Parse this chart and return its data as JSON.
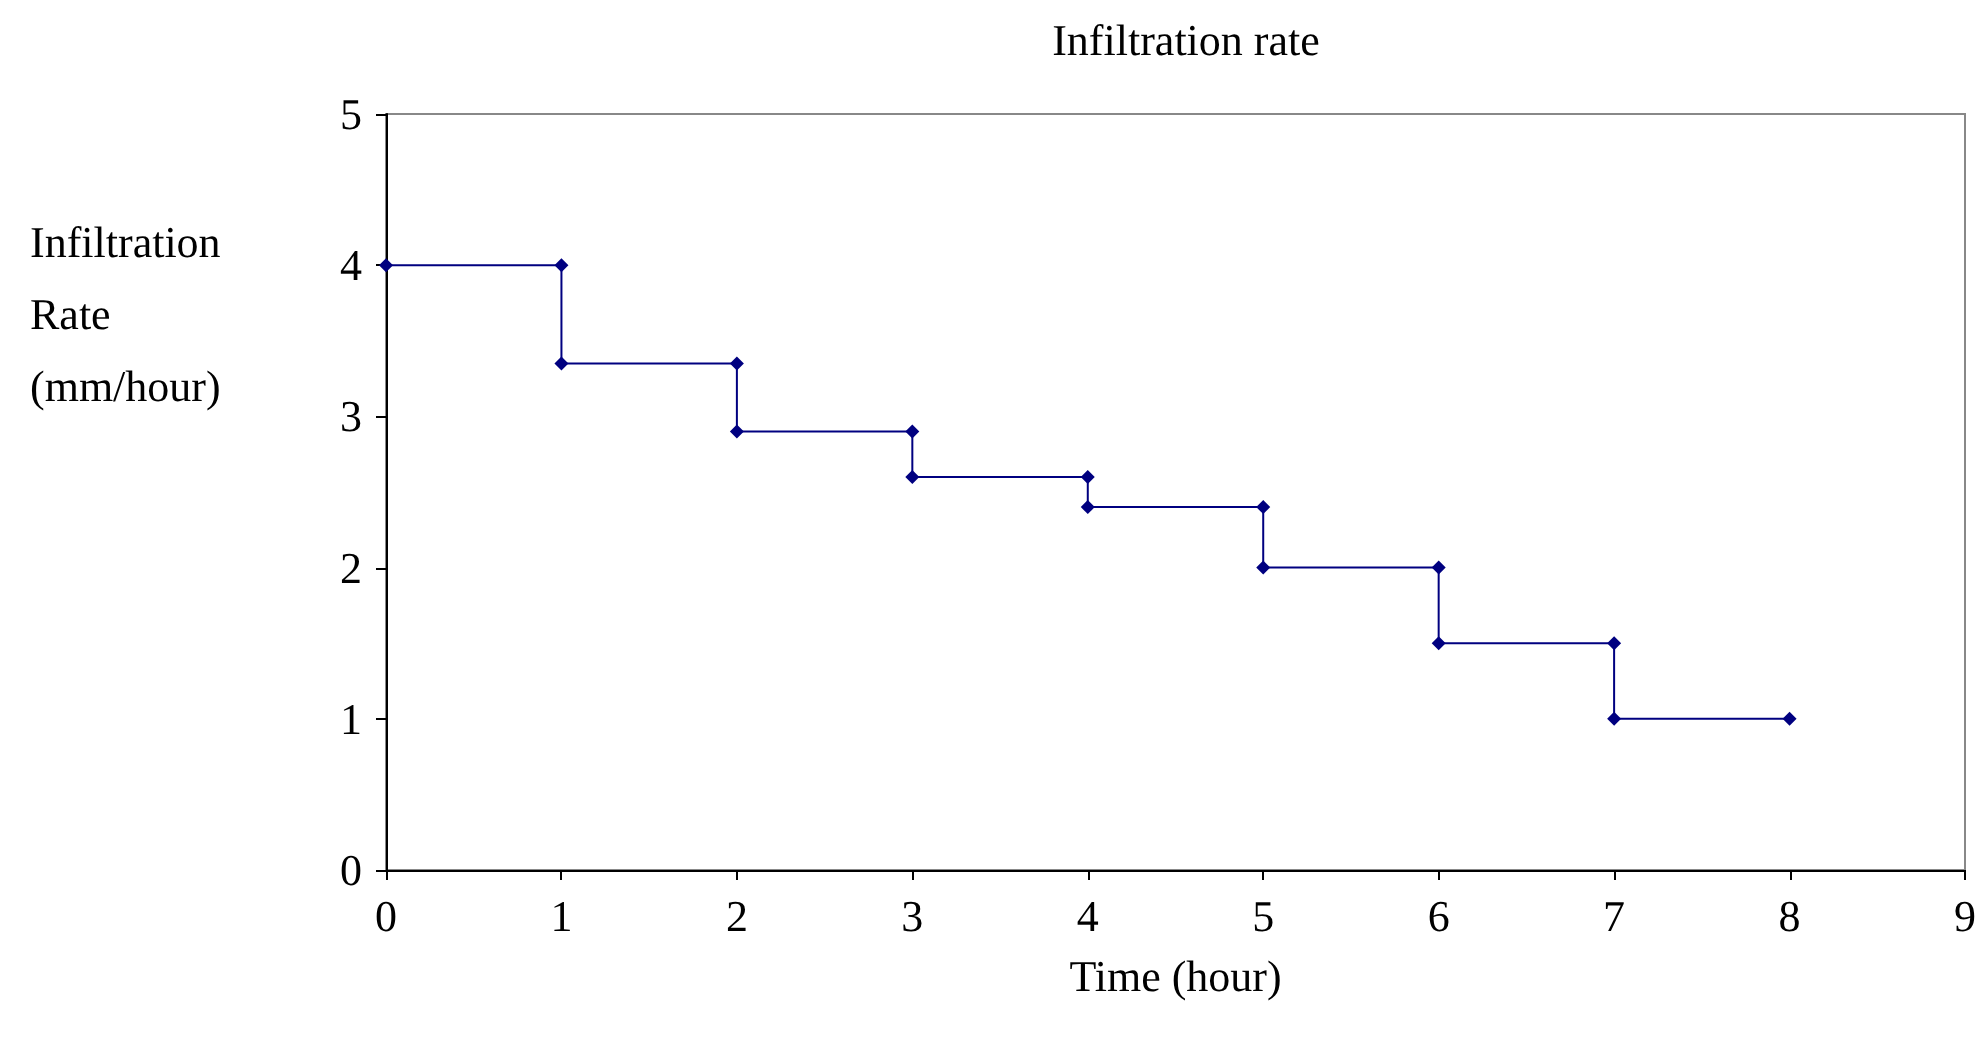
{
  "chart_data": {
    "type": "line",
    "title": "Infiltration rate",
    "xlabel": "Time (hour)",
    "ylabel": "Infiltration\nRate\n(mm/hour)",
    "x": [
      0,
      1,
      1,
      2,
      2,
      3,
      3,
      4,
      4,
      5,
      5,
      6,
      6,
      7,
      7,
      8
    ],
    "series": [
      {
        "color": "#000080",
        "values": [
          4,
          4,
          3.35,
          3.35,
          2.9,
          2.9,
          2.6,
          2.6,
          2.4,
          2.4,
          2.0,
          2.0,
          1.5,
          1.5,
          1.0,
          1.0
        ]
      }
    ],
    "xlim": [
      0,
      9
    ],
    "xticks": [
      0,
      1,
      2,
      3,
      4,
      5,
      6,
      7,
      8,
      9
    ],
    "ylim": [
      0,
      5
    ],
    "yticks": [
      0,
      1,
      2,
      3,
      4,
      5
    ],
    "marker": "diamond",
    "line_style": "solid"
  }
}
